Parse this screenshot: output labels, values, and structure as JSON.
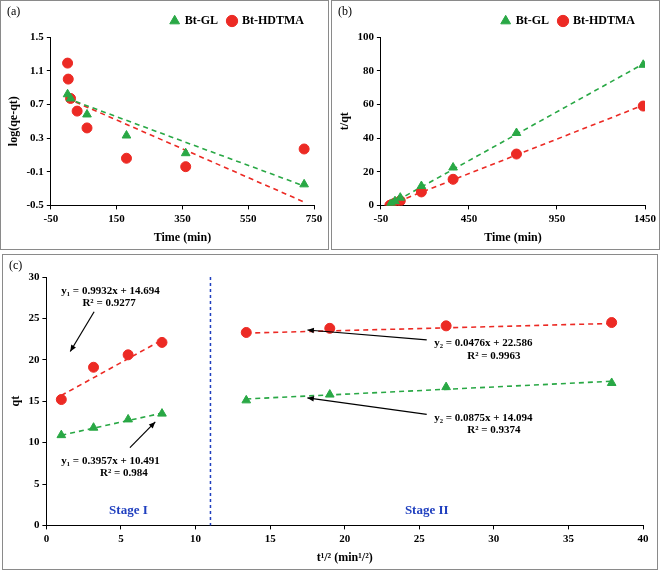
{
  "chart_data": [
    {
      "type": "scatter",
      "title": "(a)",
      "x_label": "Time (min)",
      "y_label": "log(qe-qt)",
      "xlim": [
        -50,
        750
      ],
      "xticks": [
        -50,
        150,
        350,
        550,
        750
      ],
      "ylim": [
        -0.5,
        1.5
      ],
      "yticks": [
        -0.5,
        -0.1,
        0.3,
        0.7,
        1.1,
        1.5
      ],
      "grid": false,
      "legend": "upper right",
      "series": [
        {
          "name": "Bt-GL",
          "color": "#29a845",
          "marker": "triangle",
          "x": [
            1,
            10,
            60,
            180,
            360,
            720
          ],
          "values": [
            0.82,
            0.77,
            0.58,
            0.33,
            0.12,
            -0.25
          ]
        },
        {
          "name": "Bt-HDTMA",
          "color": "#ec2a24",
          "marker": "circle",
          "x": [
            1,
            3,
            10,
            30,
            60,
            180,
            360,
            720
          ],
          "values": [
            1.19,
            1.0,
            0.77,
            0.62,
            0.42,
            0.06,
            -0.04,
            0.17
          ]
        },
        {
          "type": "line",
          "line_style": "dashed",
          "color": "#29a845",
          "x": [
            0,
            720
          ],
          "values": [
            0.77,
            -0.27
          ]
        },
        {
          "type": "line",
          "line_style": "dashed",
          "color": "#ec2a24",
          "x": [
            0,
            720
          ],
          "values": [
            0.77,
            -0.46
          ]
        }
      ]
    },
    {
      "type": "scatter",
      "title": "(b)",
      "x_label": "Time (min)",
      "y_label": "t/qt",
      "xlim": [
        -50,
        1450
      ],
      "xticks": [
        -50,
        450,
        950,
        1450
      ],
      "ylim": [
        0,
        100
      ],
      "yticks": [
        0,
        20,
        40,
        60,
        80,
        100
      ],
      "grid": false,
      "legend": "upper right",
      "series": [
        {
          "name": "Bt-GL",
          "color": "#29a845",
          "marker": "triangle",
          "x": [
            1,
            10,
            30,
            60,
            180,
            360,
            720,
            1440
          ],
          "values": [
            0.1,
            0.9,
            2.5,
            4.6,
            11.5,
            22.5,
            43,
            83.5
          ]
        },
        {
          "name": "Bt-HDTMA",
          "color": "#ec2a24",
          "marker": "circle",
          "x": [
            1,
            10,
            30,
            60,
            180,
            360,
            720,
            1440
          ],
          "values": [
            0.07,
            0.45,
            1.4,
            2.7,
            8,
            15.5,
            30.5,
            59
          ]
        },
        {
          "type": "line",
          "line_style": "dashed",
          "color": "#29a845",
          "x": [
            0,
            1440
          ],
          "values": [
            0.5,
            84
          ]
        },
        {
          "type": "line",
          "line_style": "dashed",
          "color": "#ec2a24",
          "x": [
            0,
            1440
          ],
          "values": [
            0.4,
            59.5
          ]
        }
      ]
    },
    {
      "type": "scatter",
      "title": "(c)",
      "x_label": "t¹/² (min¹/²)",
      "y_label": "qt",
      "xlim": [
        0,
        40
      ],
      "xticks": [
        0,
        5,
        10,
        15,
        20,
        25,
        30,
        35,
        40
      ],
      "ylim": [
        0,
        30
      ],
      "yticks": [
        0,
        5,
        10,
        15,
        20,
        25,
        30
      ],
      "grid": false,
      "divider_x": 11,
      "divider_color": "#1f3fbf",
      "series": [
        {
          "color": "#ec2a24",
          "marker": "circle",
          "x": [
            1,
            3.16,
            5.48,
            7.75,
            13.4,
            19,
            26.8,
            37.9
          ],
          "values": [
            15.2,
            19.1,
            20.6,
            22.1,
            23.3,
            23.8,
            24.1,
            24.5
          ]
        },
        {
          "color": "#29a845",
          "marker": "triangle",
          "x": [
            1,
            3.16,
            5.48,
            7.75,
            13.4,
            19,
            26.8,
            37.9
          ],
          "values": [
            10.9,
            11.8,
            12.8,
            13.5,
            15.1,
            15.8,
            16.7,
            17.2
          ]
        },
        {
          "type": "line",
          "line_style": "dashed",
          "color": "#ec2a24",
          "x": [
            1,
            7.75
          ],
          "values": [
            15.69,
            22.39
          ]
        },
        {
          "type": "line",
          "line_style": "dashed",
          "color": "#29a845",
          "x": [
            1,
            7.75
          ],
          "values": [
            10.89,
            13.56
          ]
        },
        {
          "type": "line",
          "line_style": "dashed",
          "color": "#ec2a24",
          "x": [
            13.4,
            37.9
          ],
          "values": [
            23.22,
            24.39
          ]
        },
        {
          "type": "line",
          "line_style": "dashed",
          "color": "#29a845",
          "x": [
            13.4,
            37.9
          ],
          "values": [
            15.27,
            17.41
          ]
        }
      ],
      "annotations": [
        {
          "text": "y₁ = 0.9932x + 14.694",
          "color": "#000000"
        },
        {
          "text": "R² = 0.9277",
          "color": "#000000"
        },
        {
          "text": "y₁ = 0.3957x + 10.491",
          "color": "#000000"
        },
        {
          "text": "R² = 0.984",
          "color": "#000000"
        },
        {
          "text": "y₂ = 0.0476x + 22.586",
          "color": "#000000"
        },
        {
          "text": "R² = 0.9963",
          "color": "#000000"
        },
        {
          "text": "y₂ = 0.0875x + 14.094",
          "color": "#000000"
        },
        {
          "text": "R² = 0.9374",
          "color": "#000000"
        },
        {
          "text": "Stage I",
          "color": "#1f3fbf"
        },
        {
          "text": "Stage II",
          "color": "#1f3fbf"
        }
      ]
    }
  ]
}
